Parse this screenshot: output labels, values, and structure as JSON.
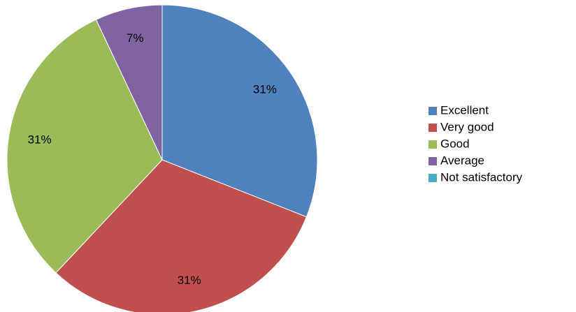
{
  "chart_data": {
    "type": "pie",
    "categories": [
      "Excellent",
      "Very good",
      "Good",
      "Average",
      "Not satisfactory"
    ],
    "values": [
      31,
      31,
      31,
      7,
      0
    ],
    "value_labels": [
      "31%",
      "31%",
      "31%",
      "7%",
      null
    ],
    "colors": [
      "#4f81bd",
      "#c0504d",
      "#9bbb59",
      "#8064a2",
      "#4bacc6"
    ],
    "legend": "right"
  }
}
